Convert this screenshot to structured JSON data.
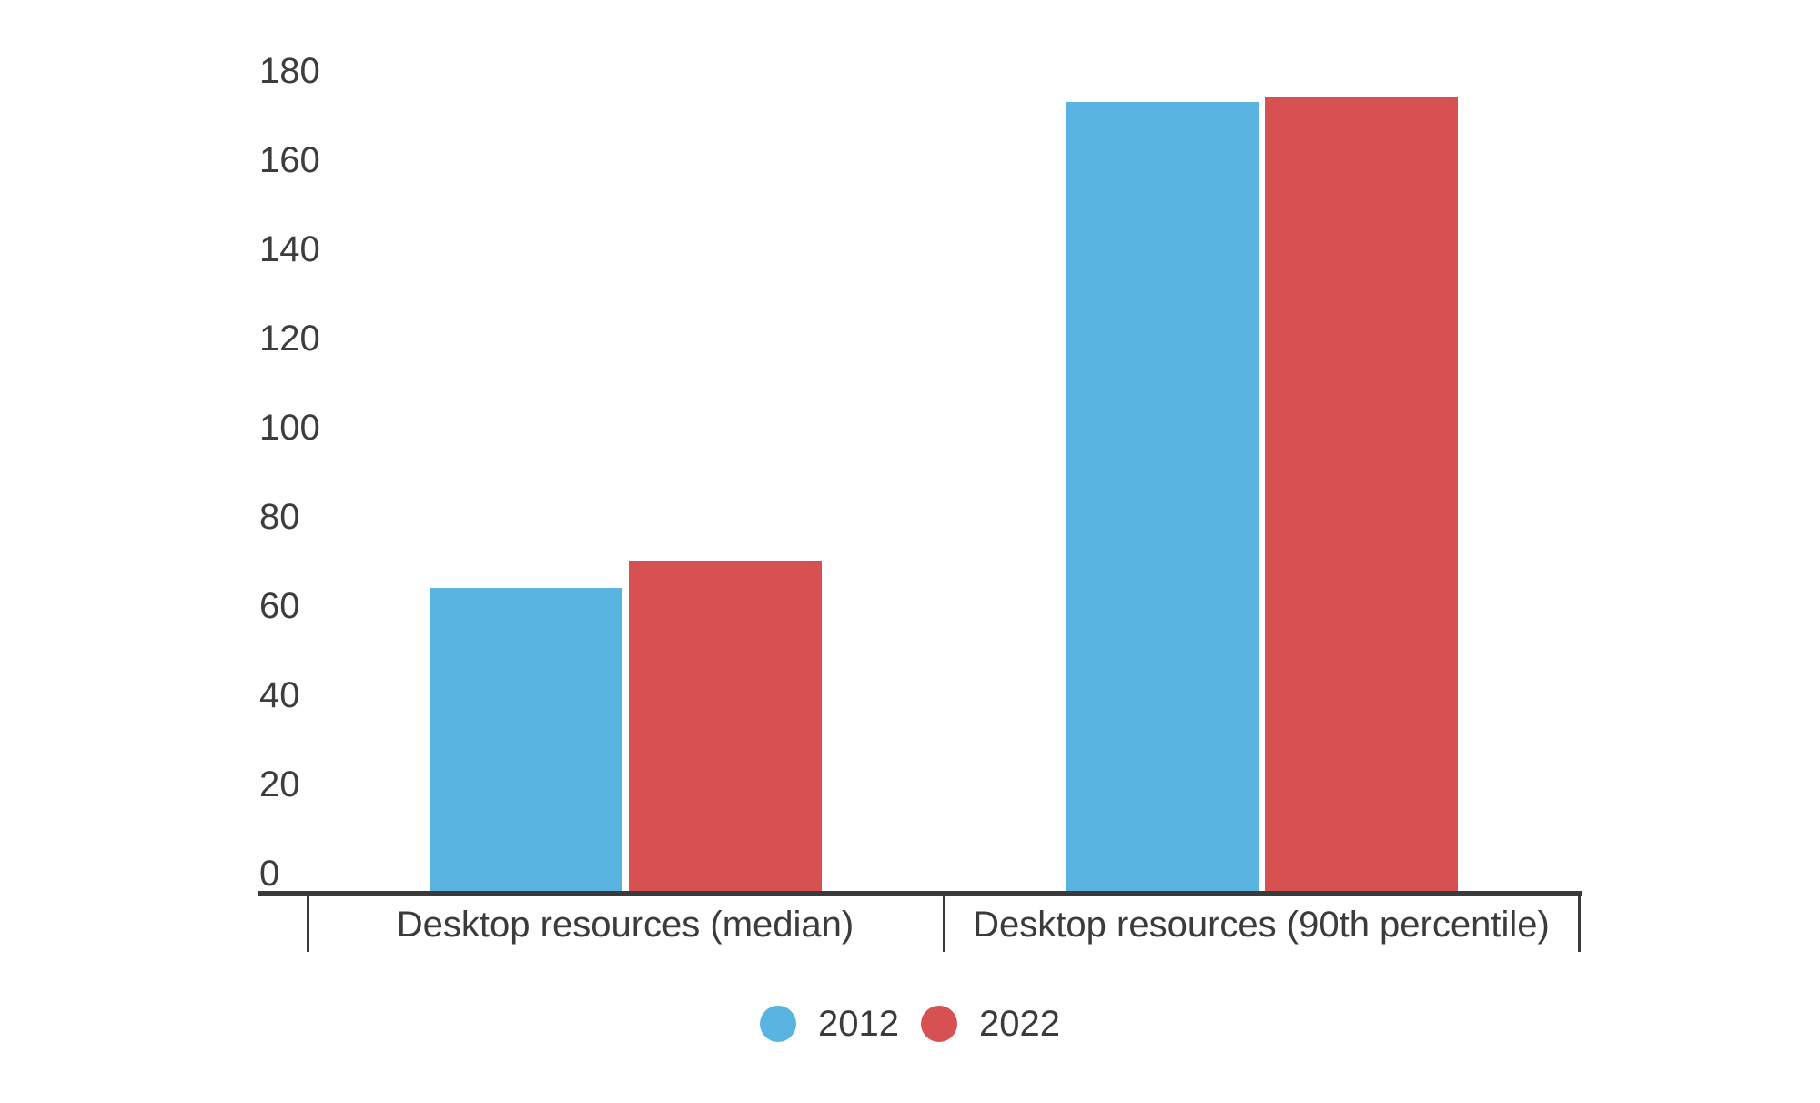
{
  "chart_data": {
    "type": "bar",
    "title": "",
    "categories": [
      "Desktop resources (median)",
      "Desktop resources (90th percentile)"
    ],
    "series": [
      {
        "name": "2012",
        "color": "#5ab4e1",
        "values": [
          68,
          177
        ]
      },
      {
        "name": "2022",
        "color": "#d75052",
        "values": [
          74,
          178
        ]
      }
    ],
    "xlabel": "",
    "ylabel": "",
    "ylim": [
      0,
      180
    ],
    "ytick_step": 20,
    "yticks": [
      0,
      20,
      40,
      60,
      80,
      100,
      120,
      140,
      160,
      180
    ],
    "ytick_labels": [
      "0",
      "20",
      "40",
      "60",
      "80",
      "100",
      "120",
      "140",
      "160",
      "180"
    ],
    "grid": false,
    "legend_position": "bottom",
    "axis_color": "#3a3a3a",
    "text_color": "#3b3b3b",
    "background_color": "#ffffff"
  }
}
